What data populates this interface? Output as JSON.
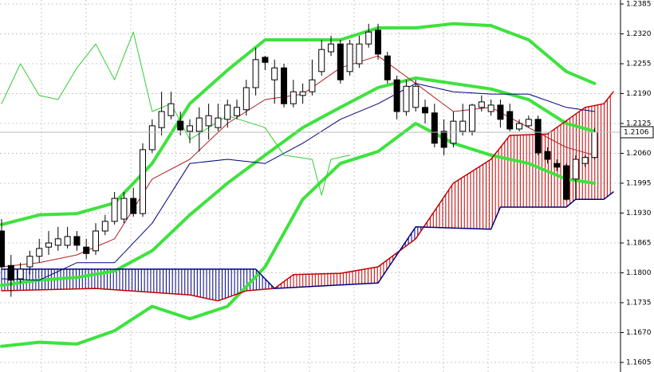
{
  "chart_data": {
    "type": "candlestick",
    "x": [
      0,
      1,
      2,
      3,
      4,
      5,
      6,
      7,
      8,
      9,
      10,
      11,
      12,
      13,
      14,
      15,
      16,
      17,
      18,
      19,
      20,
      21,
      22,
      23,
      24,
      25,
      26,
      27,
      28,
      29,
      30,
      31,
      32,
      33,
      34,
      35,
      36,
      37,
      38,
      39,
      40,
      41,
      42,
      43,
      44,
      45,
      46,
      47,
      48,
      49,
      50,
      51,
      52,
      53,
      54,
      55,
      56,
      57,
      58,
      59,
      60,
      61,
      62,
      63
    ],
    "open": [
      1.1891,
      1.1816,
      1.1787,
      1.1813,
      1.1836,
      1.1856,
      1.186,
      1.186,
      1.1879,
      1.1856,
      1.1848,
      1.1891,
      1.1912,
      1.1917,
      1.1962,
      1.1929,
      1.2068,
      1.2116,
      1.2142,
      1.213,
      1.2108,
      1.2108,
      1.212,
      1.2116,
      1.2134,
      1.2142,
      1.2155,
      1.2203,
      1.2269,
      1.222,
      1.2246,
      1.2168,
      1.2186,
      1.2194,
      1.2238,
      1.2281,
      1.2298,
      1.2238,
      1.2255,
      1.2298,
      1.2328,
      1.2272,
      1.222,
      1.2151,
      1.216,
      1.216,
      1.2148,
      1.2108,
      1.2082,
      1.2108,
      1.2108,
      1.216,
      1.2151,
      1.2165,
      1.2151,
      1.2113,
      1.212,
      1.2134,
      1.2064,
      1.2038,
      1.2033,
      1.2004,
      1.2038,
      1.2051
    ],
    "high": [
      1.1917,
      1.1839,
      1.1822,
      1.1848,
      1.1874,
      1.1891,
      1.19,
      1.19,
      1.1891,
      1.1874,
      1.1908,
      1.1926,
      1.1976,
      1.1976,
      1.1985,
      1.2082,
      1.2134,
      1.2194,
      1.2194,
      1.2151,
      1.2134,
      1.216,
      1.2168,
      1.2168,
      1.2177,
      1.2177,
      1.222,
      1.229,
      1.2272,
      1.2264,
      1.2255,
      1.222,
      1.2212,
      1.2264,
      1.2307,
      1.2316,
      1.2307,
      1.2307,
      1.2316,
      1.2342,
      1.2342,
      1.2281,
      1.2229,
      1.222,
      1.222,
      1.2177,
      1.2168,
      1.2134,
      1.2151,
      1.2168,
      1.2168,
      1.2186,
      1.2177,
      1.2177,
      1.2168,
      1.2134,
      1.2142,
      1.2142,
      1.2073,
      1.2047,
      1.2038,
      1.2056,
      1.2056,
      1.2116
    ],
    "low": [
      1.1804,
      1.1748,
      1.1778,
      1.1796,
      1.1822,
      1.1839,
      1.1848,
      1.1853,
      1.1848,
      1.183,
      1.1839,
      1.1882,
      1.1905,
      1.1908,
      1.1922,
      1.1922,
      1.2061,
      1.2099,
      1.2134,
      1.2099,
      1.2082,
      1.2064,
      1.209,
      1.2108,
      1.2116,
      1.2134,
      1.2142,
      1.2186,
      1.2241,
      1.2168,
      1.216,
      1.216,
      1.2168,
      1.2186,
      1.2229,
      1.2272,
      1.2212,
      1.2229,
      1.2246,
      1.229,
      1.2264,
      1.2212,
      1.2134,
      1.2142,
      1.2151,
      1.2125,
      1.2073,
      1.2056,
      1.2073,
      1.2099,
      1.2099,
      1.2151,
      1.2142,
      1.2116,
      1.2108,
      1.2108,
      1.2116,
      1.2056,
      1.2038,
      1.2021,
      1.1957,
      1.196,
      1.203,
      1.2047
    ],
    "close": [
      1.1813,
      1.1784,
      1.1808,
      1.1836,
      1.1853,
      1.1865,
      1.1874,
      1.1879,
      1.186,
      1.1842,
      1.1891,
      1.1912,
      1.1962,
      1.1962,
      1.1929,
      1.2068,
      1.212,
      1.2151,
      1.2168,
      1.2111,
      1.212,
      1.2137,
      1.2142,
      1.2137,
      1.2165,
      1.216,
      1.2203,
      1.2264,
      1.2258,
      1.2246,
      1.2168,
      1.2194,
      1.2194,
      1.222,
      1.2286,
      1.2298,
      1.222,
      1.2298,
      1.2298,
      1.2324,
      1.2276,
      1.222,
      1.2151,
      1.2206,
      1.2206,
      1.2148,
      1.2082,
      1.2073,
      1.213,
      1.213,
      1.2165,
      1.2172,
      1.2165,
      1.2134,
      1.2113,
      1.2125,
      1.2134,
      1.2061,
      1.2047,
      1.203,
      1.196,
      1.2047,
      1.2051,
      1.2106
    ],
    "up_color": "#ffffff",
    "down_color": "#000000",
    "series": [
      {
        "x": [
          0,
          4,
          8,
          12,
          16,
          20,
          24,
          28,
          32,
          36,
          40,
          44,
          48,
          52,
          56,
          60,
          63
        ],
        "values": [
          1.1905,
          1.1926,
          1.1929,
          1.1952,
          1.2038,
          1.2168,
          1.2241,
          1.2307,
          1.2307,
          1.2307,
          1.2333,
          1.2333,
          1.2342,
          1.2338,
          1.2307,
          1.2238,
          1.2212
        ],
        "color": "#3ee23e",
        "width": 4
      },
      {
        "x": [
          0,
          4,
          8,
          12,
          16,
          20,
          24,
          28,
          32,
          36,
          40,
          44,
          48,
          52,
          56,
          60,
          63
        ],
        "values": [
          1.1773,
          1.1784,
          1.179,
          1.1804,
          1.1848,
          1.1926,
          1.1995,
          1.2056,
          1.2116,
          1.216,
          1.2203,
          1.2224,
          1.2212,
          1.22,
          1.2177,
          1.2125,
          1.2108
        ],
        "color": "#3ee23e",
        "width": 4
      },
      {
        "x": [
          0,
          4,
          8,
          12,
          16,
          20,
          24,
          28,
          32,
          36,
          40,
          44,
          48,
          52,
          56,
          60,
          63
        ],
        "values": [
          1.164,
          1.1649,
          1.1645,
          1.1674,
          1.1727,
          1.17,
          1.1727,
          1.1813,
          1.196,
          1.2038,
          1.2064,
          1.2125,
          1.2082,
          1.2056,
          1.2038,
          1.2004,
          1.1995
        ],
        "color": "#3ee23e",
        "width": 4
      },
      {
        "x": [
          0,
          4,
          8,
          12,
          16,
          20,
          24,
          28,
          32,
          36,
          40,
          44,
          48,
          52,
          56,
          60,
          63
        ],
        "values": [
          1.1813,
          1.1822,
          1.1839,
          1.1874,
          1.2004,
          1.2047,
          1.2125,
          1.2177,
          1.2189,
          1.2246,
          1.2272,
          1.2212,
          1.2151,
          1.216,
          1.2116,
          1.2073,
          1.2056
        ],
        "color": "#b22222",
        "width": 1
      },
      {
        "x": [
          0,
          4,
          8,
          12,
          16,
          20,
          24,
          28,
          32,
          36,
          40,
          44,
          48,
          52,
          56,
          60,
          63
        ],
        "values": [
          1.1787,
          1.1784,
          1.1822,
          1.1822,
          1.1908,
          1.2038,
          1.2047,
          1.2038,
          1.2082,
          1.2134,
          1.2168,
          1.2212,
          1.2194,
          1.2189,
          1.2189,
          1.216,
          1.2151
        ],
        "color": "#000080",
        "width": 1
      },
      {
        "x": [
          0,
          2,
          4,
          6,
          8,
          10,
          12,
          14,
          16,
          18,
          20,
          24,
          28,
          30,
          33,
          34,
          35,
          37
        ],
        "values": [
          1.2168,
          1.2255,
          1.2186,
          1.2177,
          1.2246,
          1.2298,
          1.222,
          1.2324,
          1.2151,
          1.2168,
          1.209,
          1.2142,
          1.2116,
          1.2056,
          1.2047,
          1.1969,
          1.2047,
          1.2056
        ],
        "color": "#33cc33",
        "width": 1
      },
      {
        "x": [
          0,
          10,
          20,
          23,
          26,
          29,
          31,
          36,
          40,
          44,
          48,
          52,
          54,
          58,
          62,
          64,
          65
        ],
        "values": [
          1.1761,
          1.1766,
          1.1752,
          1.1739,
          1.1761,
          1.1766,
          1.1796,
          1.1799,
          1.1813,
          1.1874,
          1.1995,
          1.2047,
          1.2099,
          1.2102,
          1.216,
          1.2168,
          1.2194
        ],
        "color": "#c00000",
        "width": 1.5
      },
      {
        "x": [
          0,
          27,
          29,
          40,
          42,
          44,
          52,
          53,
          60,
          61,
          64,
          65
        ],
        "values": [
          1.1808,
          1.1808,
          1.1766,
          1.1778,
          1.1839,
          1.19,
          1.1895,
          1.1943,
          1.1943,
          1.196,
          1.196,
          1.1976
        ],
        "color": "#000080",
        "width": 1.5
      }
    ],
    "xlim": [
      -0.17,
      65.76
    ],
    "ylim": [
      1.15842,
      1.23937
    ],
    "yticks": [
      1.2385,
      {
        "value": 1.232,
        "label": "1.2320"
      },
      1.2255,
      {
        "value": 1.219,
        "label": "1.2190"
      },
      1.2125,
      {
        "value": 1.206,
        "label": "1.2060"
      },
      1.1995,
      {
        "value": 1.193,
        "label": "1.1930"
      },
      1.1865,
      {
        "value": 1.18,
        "label": "1.1800"
      },
      1.1735,
      {
        "value": 1.167,
        "label": "1.1670"
      },
      1.1605
    ],
    "last_price": 1.2106,
    "grid": true
  }
}
